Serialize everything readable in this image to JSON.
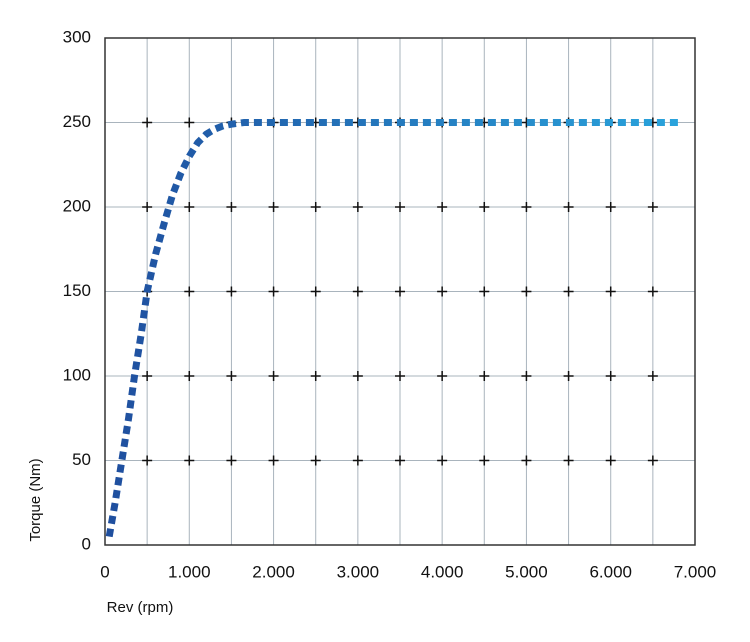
{
  "chart_data": {
    "type": "line",
    "x_label": "Rev (rpm)",
    "y_label": "Torque (Nm)",
    "series": [
      {
        "x": [
          50,
          120,
          200,
          280,
          350,
          430,
          500,
          600,
          700,
          800,
          900,
          1000,
          1100,
          1200,
          1300,
          1400,
          1500,
          1650,
          1800,
          2000,
          3000,
          4000,
          5000,
          6000,
          6800
        ],
        "values": [
          5,
          25,
          50,
          75,
          100,
          125,
          150,
          172,
          190,
          207,
          220,
          230,
          238,
          243,
          246,
          248,
          249,
          250,
          250,
          250,
          250,
          250,
          250,
          250,
          250
        ],
        "color": "#1f4e9e",
        "color_end": "#2aa6de"
      }
    ],
    "xlim": [
      0,
      7000
    ],
    "xticks": [
      0,
      {
        "value": 1000,
        "label": "1.000"
      },
      {
        "value": 2000,
        "label": "2.000"
      },
      {
        "value": 3000,
        "label": "3.000"
      },
      {
        "value": 4000,
        "label": "4.000"
      },
      {
        "value": 5000,
        "label": "5.000"
      },
      {
        "value": 6000,
        "label": "6.000"
      },
      {
        "value": 7000,
        "label": "7.000"
      }
    ],
    "x_minor_grid": [
      500,
      1500,
      2500,
      3500,
      4500,
      5500,
      6500
    ],
    "ylim": [
      0,
      300
    ],
    "yticks": [
      0,
      50,
      100,
      150,
      200,
      250,
      300
    ],
    "grid": true
  }
}
